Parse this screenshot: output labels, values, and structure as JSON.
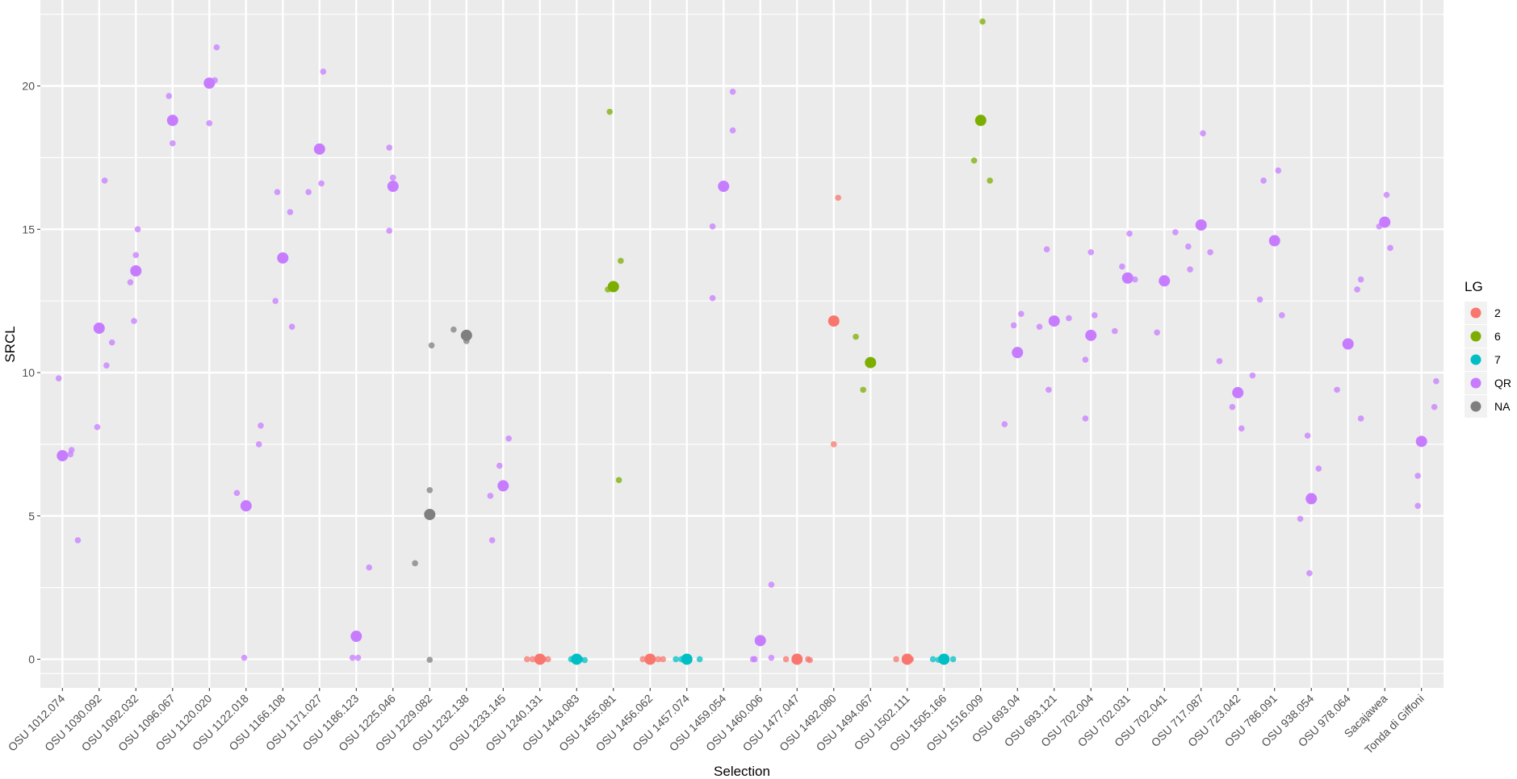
{
  "chart_data": {
    "type": "scatter",
    "title": "",
    "xlabel": "Selection",
    "ylabel": "SRCL",
    "ylim": [
      -1.0,
      23.0
    ],
    "yticks": [
      0,
      5,
      10,
      15,
      20
    ],
    "grid": true,
    "legend": {
      "title": "LG",
      "position": "right",
      "entries": [
        {
          "label": "2",
          "color": "#F8766D"
        },
        {
          "label": "6",
          "color": "#7CAE00"
        },
        {
          "label": "7",
          "color": "#00BFC4"
        },
        {
          "label": "QR",
          "color": "#C77CFF"
        },
        {
          "label": "NA",
          "color": "#7F7F7F"
        }
      ]
    },
    "categories": [
      "OSU 1012.074",
      "OSU 1030.092",
      "OSU 1092.032",
      "OSU 1096.067",
      "OSU 1120.020",
      "OSU 1122.018",
      "OSU 1166.108",
      "OSU 1171.027",
      "OSU 1186.123",
      "OSU 1225.046",
      "OSU 1229.082",
      "OSU 1232.138",
      "OSU 1233.145",
      "OSU 1240.131",
      "OSU 1443.083",
      "OSU 1455.081",
      "OSU 1456.062",
      "OSU 1457.074",
      "OSU 1459.054",
      "OSU 1460.006",
      "OSU 1477.047",
      "OSU 1492.080",
      "OSU 1494.067",
      "OSU 1502.111",
      "OSU 1505.166",
      "OSU 1516.009",
      "OSU 693.04",
      "OSU 693.121",
      "OSU 702.004",
      "OSU 702.031",
      "OSU 702.041",
      "OSU 717.087",
      "OSU 723.042",
      "OSU 786.091",
      "OSU 938.054",
      "OSU 978.064",
      "Sacajawea",
      "Tonda di Giffoni"
    ],
    "means": [
      {
        "cat": 0,
        "y": 7.1,
        "lg": "QR"
      },
      {
        "cat": 1,
        "y": 11.55,
        "lg": "QR"
      },
      {
        "cat": 2,
        "y": 13.55,
        "lg": "QR"
      },
      {
        "cat": 3,
        "y": 18.8,
        "lg": "QR"
      },
      {
        "cat": 4,
        "y": 20.1,
        "lg": "QR"
      },
      {
        "cat": 5,
        "y": 5.35,
        "lg": "QR"
      },
      {
        "cat": 6,
        "y": 14.0,
        "lg": "QR"
      },
      {
        "cat": 7,
        "y": 17.8,
        "lg": "QR"
      },
      {
        "cat": 8,
        "y": 0.8,
        "lg": "QR"
      },
      {
        "cat": 9,
        "y": 16.5,
        "lg": "QR"
      },
      {
        "cat": 10,
        "y": 5.05,
        "lg": "NA"
      },
      {
        "cat": 11,
        "y": 11.3,
        "lg": "NA"
      },
      {
        "cat": 12,
        "y": 6.05,
        "lg": "QR"
      },
      {
        "cat": 13,
        "y": 0.0,
        "lg": "2"
      },
      {
        "cat": 14,
        "y": 0.0,
        "lg": "7"
      },
      {
        "cat": 15,
        "y": 13.0,
        "lg": "6"
      },
      {
        "cat": 16,
        "y": 0.0,
        "lg": "2"
      },
      {
        "cat": 17,
        "y": 0.0,
        "lg": "7"
      },
      {
        "cat": 18,
        "y": 16.5,
        "lg": "QR"
      },
      {
        "cat": 19,
        "y": 0.65,
        "lg": "QR"
      },
      {
        "cat": 20,
        "y": 0.0,
        "lg": "2"
      },
      {
        "cat": 21,
        "y": 11.8,
        "lg": "2"
      },
      {
        "cat": 22,
        "y": 10.35,
        "lg": "6"
      },
      {
        "cat": 23,
        "y": 0.0,
        "lg": "2"
      },
      {
        "cat": 24,
        "y": 0.0,
        "lg": "7"
      },
      {
        "cat": 25,
        "y": 18.8,
        "lg": "6"
      },
      {
        "cat": 26,
        "y": 10.7,
        "lg": "QR"
      },
      {
        "cat": 27,
        "y": 11.8,
        "lg": "QR"
      },
      {
        "cat": 28,
        "y": 11.3,
        "lg": "QR"
      },
      {
        "cat": 29,
        "y": 13.3,
        "lg": "QR"
      },
      {
        "cat": 30,
        "y": 13.2,
        "lg": "QR"
      },
      {
        "cat": 31,
        "y": 15.15,
        "lg": "QR"
      },
      {
        "cat": 32,
        "y": 9.3,
        "lg": "QR"
      },
      {
        "cat": 33,
        "y": 14.6,
        "lg": "QR"
      },
      {
        "cat": 34,
        "y": 5.6,
        "lg": "QR"
      },
      {
        "cat": 35,
        "y": 11.0,
        "lg": "QR"
      },
      {
        "cat": 36,
        "y": 15.25,
        "lg": "QR"
      },
      {
        "cat": 37,
        "y": 7.6,
        "lg": "QR"
      }
    ],
    "observations": [
      {
        "cat": 0,
        "dx": -0.1,
        "y": 9.8,
        "lg": "QR"
      },
      {
        "cat": 0,
        "dx": 0.25,
        "y": 7.3,
        "lg": "QR"
      },
      {
        "cat": 0,
        "dx": 0.22,
        "y": 7.15,
        "lg": "QR"
      },
      {
        "cat": 0,
        "dx": 0.42,
        "y": 4.15,
        "lg": "QR"
      },
      {
        "cat": 1,
        "dx": 0.15,
        "y": 16.7,
        "lg": "QR"
      },
      {
        "cat": 1,
        "dx": 0.2,
        "y": 10.25,
        "lg": "QR"
      },
      {
        "cat": 1,
        "dx": 0.35,
        "y": 11.05,
        "lg": "QR"
      },
      {
        "cat": 1,
        "dx": -0.05,
        "y": 8.1,
        "lg": "QR"
      },
      {
        "cat": 2,
        "dx": 0.0,
        "y": 14.1,
        "lg": "QR"
      },
      {
        "cat": 2,
        "dx": 0.05,
        "y": 15.0,
        "lg": "QR"
      },
      {
        "cat": 2,
        "dx": -0.15,
        "y": 13.15,
        "lg": "QR"
      },
      {
        "cat": 2,
        "dx": -0.05,
        "y": 11.8,
        "lg": "QR"
      },
      {
        "cat": 3,
        "dx": 0.0,
        "y": 18.0,
        "lg": "QR"
      },
      {
        "cat": 3,
        "dx": -0.1,
        "y": 19.65,
        "lg": "QR"
      },
      {
        "cat": 4,
        "dx": 0.2,
        "y": 21.35,
        "lg": "QR"
      },
      {
        "cat": 4,
        "dx": 0.15,
        "y": 20.2,
        "lg": "QR"
      },
      {
        "cat": 4,
        "dx": 0.0,
        "y": 18.7,
        "lg": "QR"
      },
      {
        "cat": 5,
        "dx": -0.25,
        "y": 5.8,
        "lg": "QR"
      },
      {
        "cat": 5,
        "dx": -0.05,
        "y": 0.05,
        "lg": "QR"
      },
      {
        "cat": 5,
        "dx": 0.35,
        "y": 7.5,
        "lg": "QR"
      },
      {
        "cat": 5,
        "dx": 0.4,
        "y": 8.15,
        "lg": "QR"
      },
      {
        "cat": 6,
        "dx": -0.15,
        "y": 16.3,
        "lg": "QR"
      },
      {
        "cat": 6,
        "dx": 0.2,
        "y": 15.6,
        "lg": "QR"
      },
      {
        "cat": 6,
        "dx": 0.25,
        "y": 11.6,
        "lg": "QR"
      },
      {
        "cat": 6,
        "dx": -0.2,
        "y": 12.5,
        "lg": "QR"
      },
      {
        "cat": 7,
        "dx": 0.1,
        "y": 20.5,
        "lg": "QR"
      },
      {
        "cat": 7,
        "dx": 0.05,
        "y": 16.6,
        "lg": "QR"
      },
      {
        "cat": 7,
        "dx": -0.3,
        "y": 16.3,
        "lg": "QR"
      },
      {
        "cat": 8,
        "dx": -0.1,
        "y": 0.05,
        "lg": "QR"
      },
      {
        "cat": 8,
        "dx": 0.05,
        "y": 0.05,
        "lg": "QR"
      },
      {
        "cat": 8,
        "dx": 0.35,
        "y": 3.2,
        "lg": "QR"
      },
      {
        "cat": 9,
        "dx": -0.1,
        "y": 17.85,
        "lg": "QR"
      },
      {
        "cat": 9,
        "dx": 0.0,
        "y": 16.8,
        "lg": "QR"
      },
      {
        "cat": 9,
        "dx": 0.05,
        "y": 16.5,
        "lg": "QR"
      },
      {
        "cat": 9,
        "dx": -0.1,
        "y": 14.95,
        "lg": "QR"
      },
      {
        "cat": 10,
        "dx": -0.4,
        "y": 3.35,
        "lg": "NA"
      },
      {
        "cat": 10,
        "dx": 0.0,
        "y": 5.9,
        "lg": "NA"
      },
      {
        "cat": 10,
        "dx": 0.05,
        "y": 10.95,
        "lg": "NA"
      },
      {
        "cat": 10,
        "dx": 0.0,
        "y": -0.02,
        "lg": "NA"
      },
      {
        "cat": 11,
        "dx": -0.35,
        "y": 11.5,
        "lg": "NA"
      },
      {
        "cat": 11,
        "dx": 0.0,
        "y": 11.1,
        "lg": "NA"
      },
      {
        "cat": 12,
        "dx": -0.35,
        "y": 5.7,
        "lg": "QR"
      },
      {
        "cat": 12,
        "dx": -0.1,
        "y": 6.75,
        "lg": "QR"
      },
      {
        "cat": 12,
        "dx": 0.15,
        "y": 7.7,
        "lg": "QR"
      },
      {
        "cat": 12,
        "dx": -0.3,
        "y": 4.15,
        "lg": "QR"
      },
      {
        "cat": 13,
        "dx": -0.35,
        "y": 0.0,
        "lg": "2"
      },
      {
        "cat": 13,
        "dx": -0.2,
        "y": 0.0,
        "lg": "2"
      },
      {
        "cat": 13,
        "dx": 0.1,
        "y": 0.0,
        "lg": "2"
      },
      {
        "cat": 13,
        "dx": 0.22,
        "y": 0.0,
        "lg": "2"
      },
      {
        "cat": 14,
        "dx": -0.15,
        "y": 0.0,
        "lg": "7"
      },
      {
        "cat": 14,
        "dx": 0.1,
        "y": 0.0,
        "lg": "7"
      },
      {
        "cat": 14,
        "dx": 0.22,
        "y": -0.03,
        "lg": "7"
      },
      {
        "cat": 15,
        "dx": -0.1,
        "y": 19.1,
        "lg": "6"
      },
      {
        "cat": 15,
        "dx": 0.2,
        "y": 13.9,
        "lg": "6"
      },
      {
        "cat": 15,
        "dx": -0.15,
        "y": 12.9,
        "lg": "6"
      },
      {
        "cat": 15,
        "dx": 0.15,
        "y": 6.25,
        "lg": "6"
      },
      {
        "cat": 16,
        "dx": -0.2,
        "y": 0.0,
        "lg": "2"
      },
      {
        "cat": 16,
        "dx": 0.22,
        "y": 0.0,
        "lg": "2"
      },
      {
        "cat": 16,
        "dx": 0.35,
        "y": 0.0,
        "lg": "2"
      },
      {
        "cat": 17,
        "dx": -0.3,
        "y": 0.0,
        "lg": "7"
      },
      {
        "cat": 17,
        "dx": -0.15,
        "y": 0.0,
        "lg": "7"
      },
      {
        "cat": 17,
        "dx": 0.35,
        "y": 0.0,
        "lg": "7"
      },
      {
        "cat": 18,
        "dx": -0.3,
        "y": 15.1,
        "lg": "QR"
      },
      {
        "cat": 18,
        "dx": 0.25,
        "y": 18.45,
        "lg": "QR"
      },
      {
        "cat": 18,
        "dx": 0.25,
        "y": 19.8,
        "lg": "QR"
      },
      {
        "cat": 18,
        "dx": -0.3,
        "y": 12.6,
        "lg": "QR"
      },
      {
        "cat": 19,
        "dx": -0.2,
        "y": 0.0,
        "lg": "QR"
      },
      {
        "cat": 19,
        "dx": -0.15,
        "y": 0.0,
        "lg": "QR"
      },
      {
        "cat": 19,
        "dx": 0.3,
        "y": 0.05,
        "lg": "QR"
      },
      {
        "cat": 19,
        "dx": 0.3,
        "y": 2.6,
        "lg": "QR"
      },
      {
        "cat": 20,
        "dx": -0.3,
        "y": 0.0,
        "lg": "2"
      },
      {
        "cat": 20,
        "dx": 0.3,
        "y": 0.0,
        "lg": "2"
      },
      {
        "cat": 20,
        "dx": 0.35,
        "y": -0.03,
        "lg": "2"
      },
      {
        "cat": 21,
        "dx": 0.12,
        "y": 16.1,
        "lg": "2"
      },
      {
        "cat": 21,
        "dx": 0.0,
        "y": 7.5,
        "lg": "2"
      },
      {
        "cat": 22,
        "dx": -0.4,
        "y": 11.25,
        "lg": "6"
      },
      {
        "cat": 22,
        "dx": -0.2,
        "y": 9.4,
        "lg": "6"
      },
      {
        "cat": 23,
        "dx": -0.3,
        "y": 0.0,
        "lg": "2"
      },
      {
        "cat": 23,
        "dx": -0.05,
        "y": 0.0,
        "lg": "2"
      },
      {
        "cat": 23,
        "dx": 0.1,
        "y": 0.0,
        "lg": "2"
      },
      {
        "cat": 24,
        "dx": -0.3,
        "y": 0.0,
        "lg": "7"
      },
      {
        "cat": 24,
        "dx": -0.15,
        "y": -0.02,
        "lg": "7"
      },
      {
        "cat": 24,
        "dx": 0.25,
        "y": 0.0,
        "lg": "7"
      },
      {
        "cat": 25,
        "dx": -0.18,
        "y": 17.4,
        "lg": "6"
      },
      {
        "cat": 25,
        "dx": 0.05,
        "y": 22.25,
        "lg": "6"
      },
      {
        "cat": 25,
        "dx": 0.25,
        "y": 16.7,
        "lg": "6"
      },
      {
        "cat": 26,
        "dx": -0.35,
        "y": 8.2,
        "lg": "QR"
      },
      {
        "cat": 26,
        "dx": -0.1,
        "y": 11.65,
        "lg": "QR"
      },
      {
        "cat": 26,
        "dx": 0.1,
        "y": 12.05,
        "lg": "QR"
      },
      {
        "cat": 27,
        "dx": -0.4,
        "y": 11.6,
        "lg": "QR"
      },
      {
        "cat": 27,
        "dx": -0.2,
        "y": 14.3,
        "lg": "QR"
      },
      {
        "cat": 27,
        "dx": -0.15,
        "y": 9.4,
        "lg": "QR"
      },
      {
        "cat": 27,
        "dx": 0.4,
        "y": 11.9,
        "lg": "QR"
      },
      {
        "cat": 28,
        "dx": -0.15,
        "y": 10.45,
        "lg": "QR"
      },
      {
        "cat": 28,
        "dx": 0.0,
        "y": 14.2,
        "lg": "QR"
      },
      {
        "cat": 28,
        "dx": 0.1,
        "y": 12.0,
        "lg": "QR"
      },
      {
        "cat": 28,
        "dx": -0.15,
        "y": 8.4,
        "lg": "QR"
      },
      {
        "cat": 29,
        "dx": -0.35,
        "y": 11.45,
        "lg": "QR"
      },
      {
        "cat": 29,
        "dx": -0.15,
        "y": 13.7,
        "lg": "QR"
      },
      {
        "cat": 29,
        "dx": 0.05,
        "y": 14.85,
        "lg": "QR"
      },
      {
        "cat": 29,
        "dx": 0.2,
        "y": 13.25,
        "lg": "QR"
      },
      {
        "cat": 30,
        "dx": -0.2,
        "y": 11.4,
        "lg": "QR"
      },
      {
        "cat": 30,
        "dx": 0.3,
        "y": 14.9,
        "lg": "QR"
      },
      {
        "cat": 31,
        "dx": -0.35,
        "y": 14.4,
        "lg": "QR"
      },
      {
        "cat": 31,
        "dx": 0.05,
        "y": 18.35,
        "lg": "QR"
      },
      {
        "cat": 31,
        "dx": 0.25,
        "y": 14.2,
        "lg": "QR"
      },
      {
        "cat": 31,
        "dx": -0.3,
        "y": 13.6,
        "lg": "QR"
      },
      {
        "cat": 32,
        "dx": -0.5,
        "y": 10.4,
        "lg": "QR"
      },
      {
        "cat": 32,
        "dx": -0.15,
        "y": 8.8,
        "lg": "QR"
      },
      {
        "cat": 32,
        "dx": 0.1,
        "y": 8.05,
        "lg": "QR"
      },
      {
        "cat": 32,
        "dx": 0.4,
        "y": 9.9,
        "lg": "QR"
      },
      {
        "cat": 33,
        "dx": -0.4,
        "y": 12.55,
        "lg": "QR"
      },
      {
        "cat": 33,
        "dx": -0.3,
        "y": 16.7,
        "lg": "QR"
      },
      {
        "cat": 33,
        "dx": 0.1,
        "y": 17.05,
        "lg": "QR"
      },
      {
        "cat": 33,
        "dx": 0.2,
        "y": 12.0,
        "lg": "QR"
      },
      {
        "cat": 34,
        "dx": -0.3,
        "y": 4.9,
        "lg": "QR"
      },
      {
        "cat": 34,
        "dx": -0.1,
        "y": 7.8,
        "lg": "QR"
      },
      {
        "cat": 34,
        "dx": 0.2,
        "y": 6.65,
        "lg": "QR"
      },
      {
        "cat": 34,
        "dx": -0.05,
        "y": 3.0,
        "lg": "QR"
      },
      {
        "cat": 35,
        "dx": -0.3,
        "y": 9.4,
        "lg": "QR"
      },
      {
        "cat": 35,
        "dx": 0.25,
        "y": 12.9,
        "lg": "QR"
      },
      {
        "cat": 35,
        "dx": 0.35,
        "y": 13.25,
        "lg": "QR"
      },
      {
        "cat": 35,
        "dx": 0.35,
        "y": 8.4,
        "lg": "QR"
      },
      {
        "cat": 36,
        "dx": -0.15,
        "y": 15.1,
        "lg": "QR"
      },
      {
        "cat": 36,
        "dx": 0.05,
        "y": 16.2,
        "lg": "QR"
      },
      {
        "cat": 36,
        "dx": 0.15,
        "y": 14.35,
        "lg": "QR"
      },
      {
        "cat": 37,
        "dx": -0.1,
        "y": 6.4,
        "lg": "QR"
      },
      {
        "cat": 37,
        "dx": -0.1,
        "y": 5.35,
        "lg": "QR"
      },
      {
        "cat": 37,
        "dx": 0.4,
        "y": 9.7,
        "lg": "QR"
      },
      {
        "cat": 37,
        "dx": 0.35,
        "y": 8.8,
        "lg": "QR"
      }
    ]
  }
}
